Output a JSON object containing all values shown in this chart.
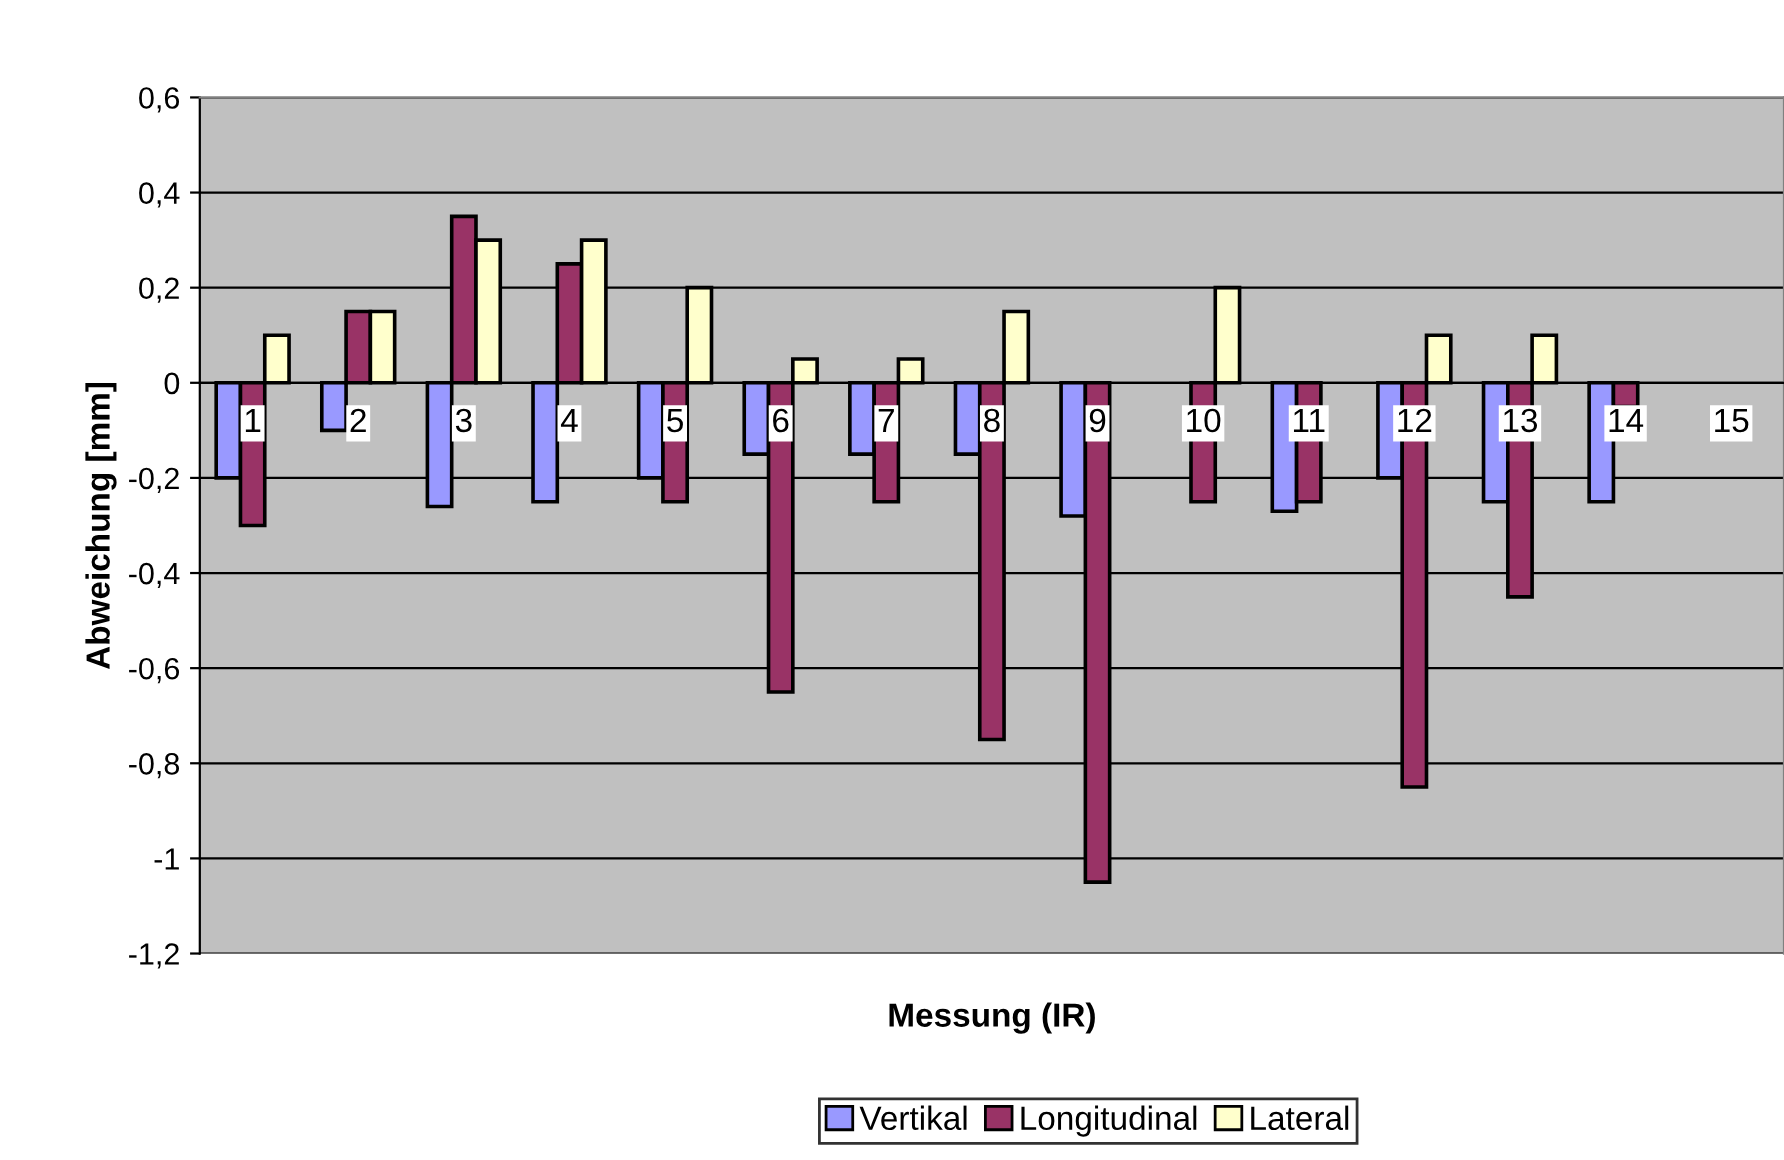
{
  "chart_data": {
    "type": "bar",
    "xlabel": "Messung (IR)",
    "ylabel": "Abweichung [mm]",
    "categories": [
      "1",
      "2",
      "3",
      "4",
      "5",
      "6",
      "7",
      "8",
      "9",
      "10",
      "11",
      "12",
      "13",
      "14",
      "15"
    ],
    "series": [
      {
        "name": "Vertikal",
        "color": "#9999ff",
        "values": [
          -0.2,
          -0.1,
          -0.26,
          -0.25,
          -0.2,
          -0.15,
          -0.15,
          -0.15,
          -0.28,
          null,
          -0.27,
          -0.2,
          -0.25,
          -0.25,
          null
        ]
      },
      {
        "name": "Longitudinal",
        "color": "#993366",
        "values": [
          -0.3,
          0.15,
          0.35,
          0.25,
          -0.25,
          -0.65,
          -0.25,
          -0.75,
          -1.05,
          -0.25,
          -0.25,
          -0.85,
          -0.45,
          -0.05,
          null
        ]
      },
      {
        "name": "Lateral",
        "color": "#ffffcc",
        "values": [
          0.1,
          0.15,
          0.3,
          0.3,
          0.2,
          0.05,
          0.05,
          0.15,
          null,
          0.2,
          null,
          0.1,
          0.1,
          null,
          null
        ]
      }
    ],
    "ylim": [
      -1.2,
      0.6
    ],
    "yticks": [
      {
        "value": -1.2,
        "label": "-1,2"
      },
      {
        "value": -1,
        "label": "-1"
      },
      {
        "value": -0.8,
        "label": "-0,8"
      },
      {
        "value": -0.6,
        "label": "-0,6"
      },
      {
        "value": -0.4,
        "label": "-0,4"
      },
      {
        "value": -0.2,
        "label": "-0,2"
      },
      {
        "value": 0,
        "label": "0"
      },
      {
        "value": 0.2,
        "label": "0,2"
      },
      {
        "value": 0.4,
        "label": "0,4"
      },
      {
        "value": 0.6,
        "label": "0,6"
      }
    ],
    "grid": "y",
    "legend": "bottom"
  }
}
